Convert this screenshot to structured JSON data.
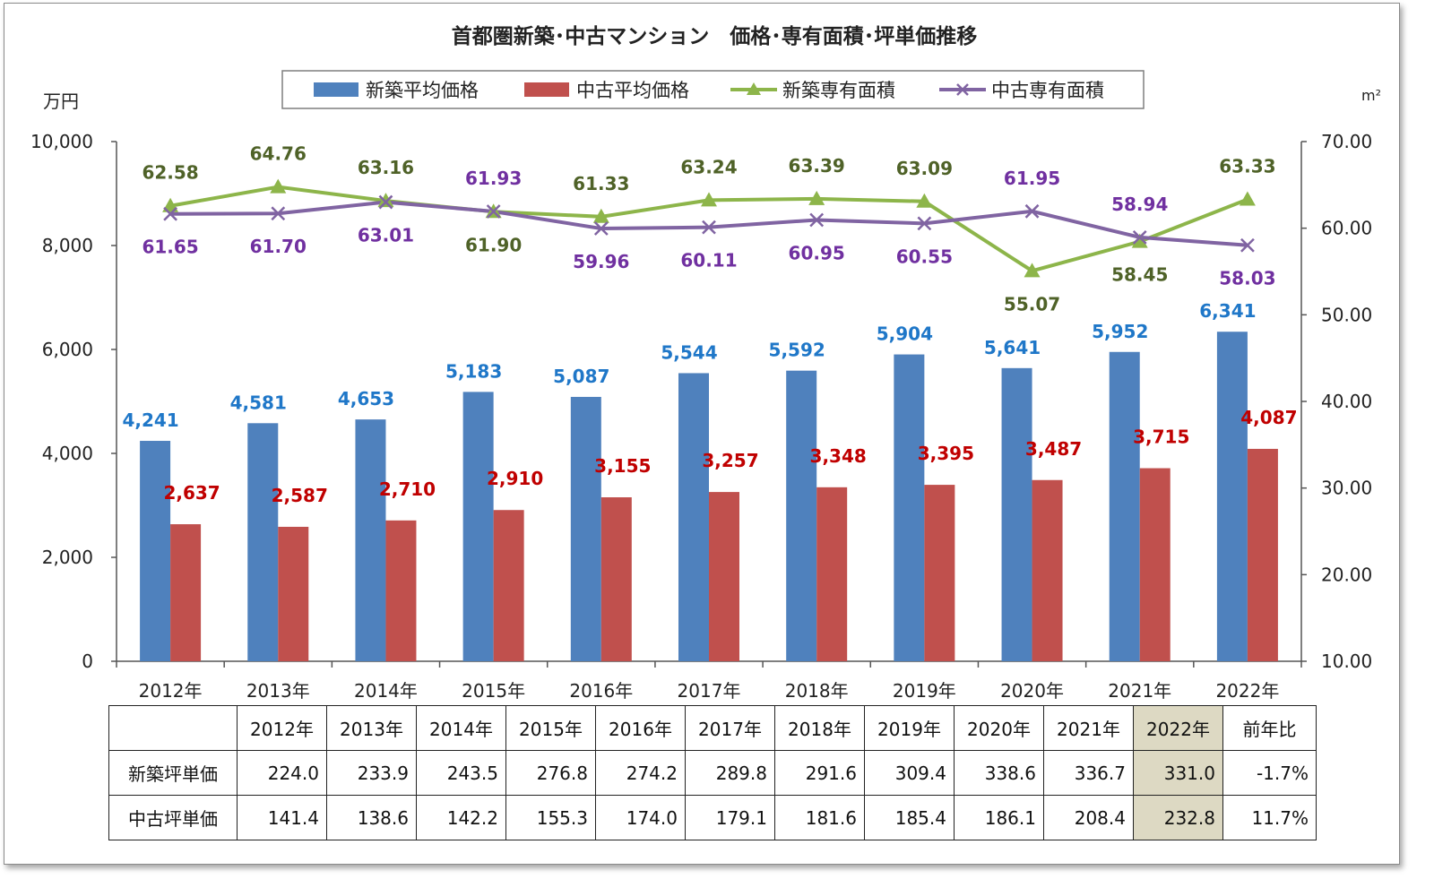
{
  "chart_data": {
    "type": "bar",
    "title": "首都圏新築･中古マンション　価格･専有面積･坪単価推移",
    "y_left_label": "万円",
    "y_right_label": "m²",
    "y_left_range": [
      0,
      10000
    ],
    "y_right_range": [
      10,
      70
    ],
    "y_left_ticks": [
      "0",
      "2,000",
      "4,000",
      "6,000",
      "8,000",
      "10,000"
    ],
    "y_right_ticks": [
      "10.00",
      "20.00",
      "30.00",
      "40.00",
      "50.00",
      "60.00",
      "70.00"
    ],
    "categories": [
      "2012年",
      "2013年",
      "2014年",
      "2015年",
      "2016年",
      "2017年",
      "2018年",
      "2019年",
      "2020年",
      "2021年",
      "2022年"
    ],
    "legend_position": "top",
    "series": [
      {
        "name": "新築平均価格",
        "type": "bar",
        "axis": "left",
        "color": "#4f81bd",
        "values": [
          4241,
          4581,
          4653,
          5183,
          5087,
          5544,
          5592,
          5904,
          5641,
          5952,
          6341
        ],
        "labels": [
          "4,241",
          "4,581",
          "4,653",
          "5,183",
          "5,087",
          "5,544",
          "5,592",
          "5,904",
          "5,641",
          "5,952",
          "6,341"
        ],
        "label_color": "#1f77c8"
      },
      {
        "name": "中古平均価格",
        "type": "bar",
        "axis": "left",
        "color": "#c0504d",
        "values": [
          2637,
          2587,
          2710,
          2910,
          3155,
          3257,
          3348,
          3395,
          3487,
          3715,
          4087
        ],
        "labels": [
          "2,637",
          "2,587",
          "2,710",
          "2,910",
          "3,155",
          "3,257",
          "3,348",
          "3,395",
          "3,487",
          "3,715",
          "4,087"
        ],
        "label_color": "#c00000"
      },
      {
        "name": "新築専有面積",
        "type": "line",
        "axis": "right",
        "color": "#8db54a",
        "marker": "triangle",
        "values": [
          62.58,
          64.76,
          63.16,
          61.9,
          61.33,
          63.24,
          63.39,
          63.09,
          55.07,
          58.45,
          63.33
        ],
        "labels": [
          "62.58",
          "64.76",
          "63.16",
          "61.90",
          "61.33",
          "63.24",
          "63.39",
          "63.09",
          "55.07",
          "58.45",
          "63.33"
        ],
        "label_color": "#4f6228"
      },
      {
        "name": "中古専有面積",
        "type": "line",
        "axis": "right",
        "color": "#8064a2",
        "marker": "x",
        "values": [
          61.65,
          61.7,
          63.01,
          61.93,
          59.96,
          60.11,
          60.95,
          60.55,
          61.95,
          58.94,
          58.03
        ],
        "labels": [
          "61.65",
          "61.70",
          "63.01",
          "61.93",
          "59.96",
          "60.11",
          "60.95",
          "60.55",
          "61.95",
          "58.94",
          "58.03"
        ],
        "label_color": "#7030a0"
      }
    ]
  },
  "table": {
    "headers": [
      "2012年",
      "2013年",
      "2014年",
      "2015年",
      "2016年",
      "2017年",
      "2018年",
      "2019年",
      "2020年",
      "2021年",
      "2022年",
      "前年比"
    ],
    "rows": [
      {
        "label": "新築坪単価",
        "values": [
          "224.0",
          "233.9",
          "243.5",
          "276.8",
          "274.2",
          "289.8",
          "291.6",
          "309.4",
          "338.6",
          "336.7",
          "331.0",
          "-1.7%"
        ]
      },
      {
        "label": "中古坪単価",
        "values": [
          "141.4",
          "138.6",
          "142.2",
          "155.3",
          "174.0",
          "179.1",
          "181.6",
          "185.4",
          "186.1",
          "208.4",
          "232.8",
          "11.7%"
        ]
      }
    ]
  }
}
